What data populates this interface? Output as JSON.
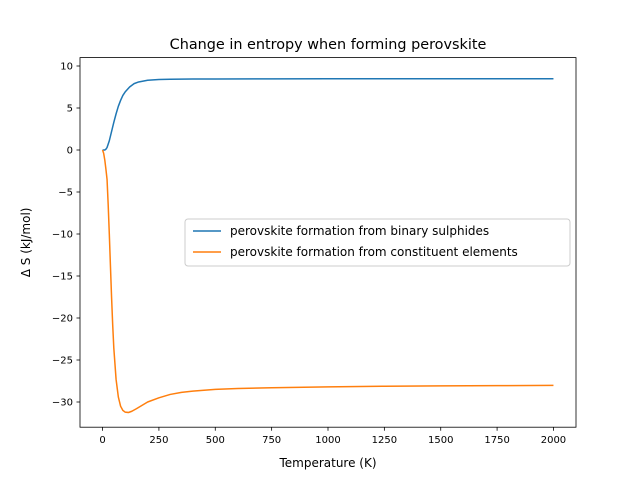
{
  "chart_data": {
    "type": "line",
    "title": "Change in entropy when forming perovskite",
    "xlabel": "Temperature (K)",
    "ylabel": "Δ S (kJ/mol)",
    "xlim": [
      -100,
      2100
    ],
    "ylim": [
      -33,
      11
    ],
    "xticks": [
      {
        "value": 0,
        "label": "0"
      },
      {
        "value": 250,
        "label": "250"
      },
      {
        "value": 500,
        "label": "500"
      },
      {
        "value": 750,
        "label": "750"
      },
      {
        "value": 1000,
        "label": "1000"
      },
      {
        "value": 1250,
        "label": "1250"
      },
      {
        "value": 1500,
        "label": "1500"
      },
      {
        "value": 1750,
        "label": "1750"
      },
      {
        "value": 2000,
        "label": "2000"
      }
    ],
    "yticks": [
      {
        "value": 10,
        "label": "10"
      },
      {
        "value": 5,
        "label": "5"
      },
      {
        "value": 0,
        "label": "0"
      },
      {
        "value": -5,
        "label": "−5"
      },
      {
        "value": -10,
        "label": "−10"
      },
      {
        "value": -15,
        "label": "−15"
      },
      {
        "value": -20,
        "label": "−20"
      },
      {
        "value": -25,
        "label": "−25"
      },
      {
        "value": -30,
        "label": "−30"
      }
    ],
    "grid": false,
    "legend_position": "center-right",
    "series": [
      {
        "name": "perovskite formation from binary sulphides",
        "color": "#1f77b4",
        "points": [
          [
            0,
            0.0
          ],
          [
            5,
            0.0
          ],
          [
            10,
            0.0
          ],
          [
            15,
            0.1
          ],
          [
            20,
            0.3
          ],
          [
            30,
            1.1
          ],
          [
            40,
            2.2
          ],
          [
            50,
            3.3
          ],
          [
            60,
            4.3
          ],
          [
            70,
            5.2
          ],
          [
            80,
            5.9
          ],
          [
            90,
            6.5
          ],
          [
            100,
            6.9
          ],
          [
            120,
            7.5
          ],
          [
            140,
            7.9
          ],
          [
            160,
            8.1
          ],
          [
            180,
            8.2
          ],
          [
            200,
            8.3
          ],
          [
            250,
            8.4
          ],
          [
            300,
            8.42
          ],
          [
            400,
            8.45
          ],
          [
            500,
            8.46
          ],
          [
            750,
            8.47
          ],
          [
            1000,
            8.48
          ],
          [
            1250,
            8.48
          ],
          [
            1500,
            8.48
          ],
          [
            1750,
            8.48
          ],
          [
            2000,
            8.48
          ]
        ]
      },
      {
        "name": "perovskite formation from constituent elements",
        "color": "#ff7f0e",
        "points": [
          [
            0,
            0.0
          ],
          [
            5,
            -0.4
          ],
          [
            10,
            -1.2
          ],
          [
            15,
            -2.3
          ],
          [
            20,
            -3.5
          ],
          [
            25,
            -6.5
          ],
          [
            30,
            -10.0
          ],
          [
            35,
            -13.8
          ],
          [
            40,
            -17.5
          ],
          [
            45,
            -20.8
          ],
          [
            50,
            -23.6
          ],
          [
            60,
            -27.3
          ],
          [
            70,
            -29.4
          ],
          [
            80,
            -30.5
          ],
          [
            90,
            -31.0
          ],
          [
            100,
            -31.2
          ],
          [
            115,
            -31.25
          ],
          [
            130,
            -31.1
          ],
          [
            150,
            -30.8
          ],
          [
            175,
            -30.4
          ],
          [
            200,
            -30.0
          ],
          [
            250,
            -29.5
          ],
          [
            300,
            -29.1
          ],
          [
            350,
            -28.85
          ],
          [
            400,
            -28.7
          ],
          [
            500,
            -28.5
          ],
          [
            600,
            -28.4
          ],
          [
            750,
            -28.3
          ],
          [
            1000,
            -28.2
          ],
          [
            1250,
            -28.12
          ],
          [
            1500,
            -28.08
          ],
          [
            1750,
            -28.05
          ],
          [
            2000,
            -28.02
          ]
        ]
      }
    ]
  }
}
